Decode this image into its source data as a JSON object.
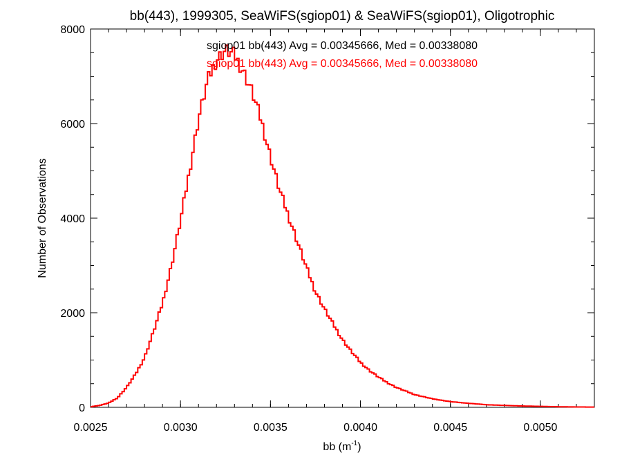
{
  "chart_data": {
    "type": "step-line",
    "title": "bb(443), 1999305, SeaWiFS(sgiop01) & SeaWiFS(sgiop01), Oligotrophic",
    "xlabel": "bb (m",
    "xlabel_sup": "-1",
    "xlabel_close": ")",
    "ylabel": "Number of Observations",
    "xlim": [
      0.0025,
      0.0053
    ],
    "ylim": [
      0,
      8000
    ],
    "x_ticks": [
      {
        "value": 0.0025,
        "label": "0.0025"
      },
      {
        "value": 0.003,
        "label": "0.0030"
      },
      {
        "value": 0.0035,
        "label": "0.0035"
      },
      {
        "value": 0.004,
        "label": "0.0040"
      },
      {
        "value": 0.0045,
        "label": "0.0045"
      },
      {
        "value": 0.005,
        "label": "0.0050"
      }
    ],
    "y_ticks": [
      {
        "value": 0,
        "label": "0"
      },
      {
        "value": 2000,
        "label": "2000"
      },
      {
        "value": 4000,
        "label": "4000"
      },
      {
        "value": 6000,
        "label": "6000"
      },
      {
        "value": 8000,
        "label": "8000"
      }
    ],
    "grid": false,
    "annotations": [
      {
        "text": "sgiop01 bb(443) Avg = 0.00345666, Med = 0.00338080",
        "color": "#000000"
      },
      {
        "text": "sgiop01 bb(443) Avg = 0.00345666, Med = 0.00338080",
        "color": "#ff0000"
      }
    ],
    "series": [
      {
        "color": "#ff0000",
        "x": [
          0.0025,
          0.00255,
          0.0026,
          0.00265,
          0.0027,
          0.00275,
          0.0028,
          0.00285,
          0.0029,
          0.00295,
          0.003,
          0.00305,
          0.0031,
          0.00315,
          0.0032,
          0.00325,
          0.0033,
          0.00335,
          0.0034,
          0.00345,
          0.0035,
          0.00355,
          0.0036,
          0.00365,
          0.0037,
          0.00375,
          0.0038,
          0.00385,
          0.0039,
          0.00395,
          0.004,
          0.00405,
          0.0041,
          0.00415,
          0.0042,
          0.0043,
          0.0044,
          0.0045,
          0.0046,
          0.0047,
          0.0048,
          0.0049,
          0.005,
          0.0051,
          0.0052,
          0.0053
        ],
        "y": [
          10,
          40,
          90,
          200,
          420,
          700,
          1050,
          1600,
          2200,
          3000,
          3950,
          5000,
          6100,
          6900,
          7350,
          7550,
          7450,
          7100,
          6650,
          6050,
          5300,
          4600,
          4050,
          3500,
          2950,
          2450,
          2080,
          1750,
          1430,
          1180,
          950,
          780,
          640,
          520,
          420,
          270,
          180,
          120,
          85,
          55,
          40,
          28,
          20,
          12,
          8,
          5
        ]
      }
    ]
  }
}
